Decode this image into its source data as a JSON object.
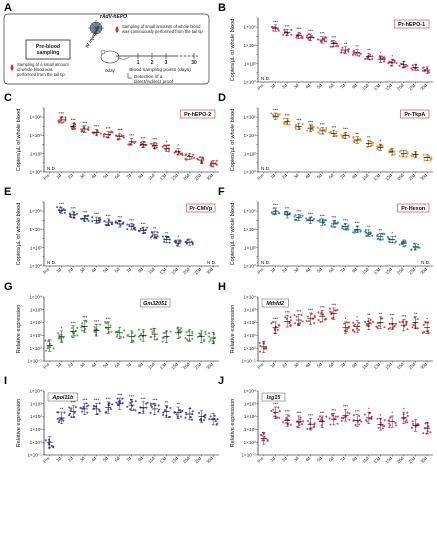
{
  "schematic": {
    "label": "A",
    "virus_label": "rAdV-hEPO",
    "pre_box": "Pre-blood\nsampling",
    "injection_label": "IV\ninjection",
    "left_note": "Sampling of a small amount\nof whole blood was\nperformed from the tail tip",
    "right_note": "Sampling of small amounts of whole blood\nwas continuously performed from the tail tip",
    "day0": "0day",
    "days": [
      "1",
      "2",
      "3",
      "30"
    ],
    "axis_label": "Blood sampling points (days)",
    "detection": "Detection of a\ndirect/indirect proof"
  },
  "x_categories": [
    "Pre",
    "1d",
    "2d",
    "3d",
    "4d",
    "5d",
    "6d",
    "7d",
    "9d",
    "11d",
    "13d",
    "15d",
    "20d",
    "25d",
    "30d"
  ],
  "chart_data": [
    {
      "panel": "B",
      "type": "scatter",
      "box_label": "Pr-hEPO-1",
      "ylabel": "Copies/µL of whole blood",
      "color": "#d6205f",
      "log": true,
      "ymin": 0,
      "ymax": 7,
      "ytick_labels": [
        "1×10⁰",
        "1×10²",
        "1×10⁴",
        "1×10⁶"
      ],
      "ytick_values": [
        0,
        2,
        4,
        6
      ],
      "medians": [
        null,
        5.9,
        5.4,
        5.1,
        4.9,
        4.6,
        4.2,
        3.5,
        3.2,
        2.8,
        2.5,
        2.1,
        1.9,
        1.6,
        1.3
      ],
      "nd": [
        "N.D.",
        ""
      ],
      "stars": [
        "",
        "***",
        "***",
        "***",
        "***",
        "***",
        "***",
        "**",
        "**",
        "**",
        "*",
        "*",
        "",
        "",
        ""
      ]
    },
    {
      "panel": "C",
      "type": "scatter",
      "box_label": "Pr-hEPO-2",
      "ylabel": "Copies/µL of whole blood",
      "color": "#d22a2a",
      "log": true,
      "ymin": 0,
      "ymax": 7,
      "ytick_labels": [
        "1×10⁰",
        "1×10²",
        "1×10⁴",
        "1×10⁶"
      ],
      "ytick_values": [
        0,
        2,
        4,
        6
      ],
      "medians": [
        null,
        5.7,
        5.0,
        4.7,
        4.3,
        4.1,
        3.9,
        3.3,
        3.0,
        2.9,
        2.6,
        2.2,
        1.7,
        1.3,
        0.9
      ],
      "nd": [
        "N.D.",
        ""
      ],
      "stars": [
        "",
        "***",
        "***",
        "***",
        "***",
        "***",
        "***",
        "***",
        "***",
        "***",
        "*",
        "*",
        "",
        "",
        ""
      ]
    },
    {
      "panel": "D",
      "type": "scatter",
      "box_label": "Pr-TkpA",
      "ylabel": "Copies/µL of whole blood",
      "color": "#e8891f",
      "log": true,
      "ymin": 0,
      "ymax": 7,
      "ytick_labels": [
        "1×10⁰",
        "1×10²",
        "1×10⁴",
        "1×10⁶"
      ],
      "ytick_values": [
        0,
        2,
        4,
        6
      ],
      "medians": [
        null,
        6.1,
        5.5,
        5.0,
        4.8,
        4.5,
        4.2,
        4.0,
        3.5,
        3.1,
        2.7,
        2.2,
        2.0,
        1.9,
        1.6
      ],
      "nd": [
        "N.D.",
        ""
      ],
      "stars": [
        "",
        "***",
        "***",
        "***",
        "***",
        "***",
        "***",
        "***",
        "**",
        "**",
        "*",
        "",
        "",
        "",
        ""
      ]
    },
    {
      "panel": "E",
      "type": "scatter",
      "box_label": "Pr-CMVp",
      "ylabel": "Copies/µL of whole blood",
      "color": "#2c3f96",
      "log": true,
      "ymin": 0,
      "ymax": 7,
      "ytick_labels": [
        "1×10⁰",
        "1×10²",
        "1×10⁴",
        "1×10⁶"
      ],
      "ytick_values": [
        0,
        2,
        4,
        6
      ],
      "medians": [
        null,
        6.1,
        5.6,
        5.2,
        5.0,
        4.8,
        4.6,
        4.3,
        3.9,
        3.4,
        2.9,
        2.5,
        2.6,
        null,
        null
      ],
      "nd": [
        "N.D.",
        "N.D."
      ],
      "stars": [
        "",
        "***",
        "***",
        "***",
        "***",
        "***",
        "***",
        "***",
        "***",
        "**",
        "**",
        "*",
        "",
        "",
        ""
      ]
    },
    {
      "panel": "F",
      "type": "scatter",
      "box_label": "Pr-Hexon",
      "ylabel": "Copies/µL of whole blood",
      "color": "#1d8aa0",
      "log": true,
      "ymin": 0,
      "ymax": 7,
      "ytick_labels": [
        "1×10⁰",
        "1×10²",
        "1×10⁴",
        "1×10⁶"
      ],
      "ytick_values": [
        0,
        2,
        4,
        6
      ],
      "medians": [
        null,
        6.0,
        5.6,
        5.3,
        5.0,
        4.8,
        4.6,
        4.3,
        4.0,
        3.6,
        3.2,
        2.9,
        2.5,
        2.1,
        null
      ],
      "nd": [
        "N.D.",
        "N.D."
      ],
      "stars": [
        "",
        "***",
        "***",
        "***",
        "***",
        "***",
        "***",
        "***",
        "***",
        "**",
        "**",
        "*",
        "",
        "",
        ""
      ]
    },
    {
      "panel": "G",
      "type": "scatter",
      "gene": "Gm32051",
      "ylabel": "Relative expression",
      "color": "#3f9b3a",
      "log": true,
      "ymin": -1,
      "ymax": 4,
      "ytick_labels": [
        "1×10⁻¹",
        "1×10⁰",
        "1×10¹",
        "1×10²",
        "1×10³",
        "1×10⁴"
      ],
      "ytick_values": [
        -1,
        0,
        1,
        2,
        3,
        4
      ],
      "medians": [
        0.2,
        0.9,
        1.3,
        1.7,
        1.4,
        1.6,
        1.2,
        0.9,
        1.0,
        1.1,
        0.9,
        1.2,
        1.0,
        0.9,
        0.8
      ],
      "stars": [
        "",
        "*",
        "***",
        "***",
        "***",
        "***",
        "",
        "",
        "",
        "",
        "",
        "",
        "",
        "",
        ""
      ]
    },
    {
      "panel": "H",
      "type": "scatter",
      "gene": "Mthfd2",
      "ylabel": "Relative expression",
      "color": "#d22a2a",
      "log": true,
      "ymin": -1,
      "ymax": 4,
      "ytick_labels": [
        "1×10⁻¹",
        "1×10⁰",
        "1×10¹",
        "1×10²",
        "1×10³",
        "1×10⁴"
      ],
      "ytick_values": [
        -1,
        0,
        1,
        2,
        3,
        4
      ],
      "medians": [
        0.1,
        1.6,
        2.1,
        2.2,
        2.3,
        2.5,
        2.7,
        1.6,
        1.7,
        1.9,
        2.0,
        1.9,
        1.8,
        2.0,
        1.6
      ],
      "stars": [
        "",
        "***",
        "***",
        "***",
        "***",
        "***",
        "***",
        "*",
        "*",
        "**",
        "**",
        "***",
        "***",
        "**",
        "*"
      ]
    },
    {
      "panel": "I",
      "type": "scatter",
      "gene": "Apol11b",
      "ylabel": "Relative expression",
      "color": "#2c3f96",
      "log": true,
      "ymin": -1,
      "ymax": 4,
      "ytick_labels": [
        "1×10⁻¹",
        "1×10⁰",
        "1×10¹",
        "1×10²",
        "1×10³",
        "1×10⁴"
      ],
      "ytick_values": [
        -1,
        0,
        1,
        2,
        3,
        4
      ],
      "medians": [
        0.0,
        1.9,
        2.4,
        2.6,
        2.6,
        2.7,
        3.0,
        2.9,
        2.7,
        2.6,
        2.4,
        2.3,
        2.2,
        2.0,
        1.8
      ],
      "stars": [
        "",
        "**",
        "***",
        "***",
        "***",
        "***",
        "***",
        "***",
        "***",
        "***",
        "**",
        "**",
        "",
        "",
        ""
      ]
    },
    {
      "panel": "J",
      "type": "scatter",
      "gene": "Isg15",
      "ylabel": "Relative expression",
      "color": "#d6205f",
      "log": true,
      "ymin": -1,
      "ymax": 4,
      "ytick_labels": [
        "1×10⁻¹",
        "1×10⁰",
        "1×10¹",
        "1×10²",
        "1×10³",
        "1×10⁴"
      ],
      "ytick_values": [
        -1,
        0,
        1,
        2,
        3,
        4
      ],
      "medians": [
        0.3,
        2.3,
        1.7,
        1.6,
        1.4,
        1.6,
        1.8,
        2.1,
        1.7,
        1.9,
        1.4,
        1.6,
        1.9,
        1.3,
        1.1
      ],
      "stars": [
        "",
        "***",
        "***",
        "***",
        "***",
        "***",
        "***",
        "***",
        "***",
        "*",
        "*",
        "*",
        "*",
        "",
        ""
      ]
    }
  ]
}
